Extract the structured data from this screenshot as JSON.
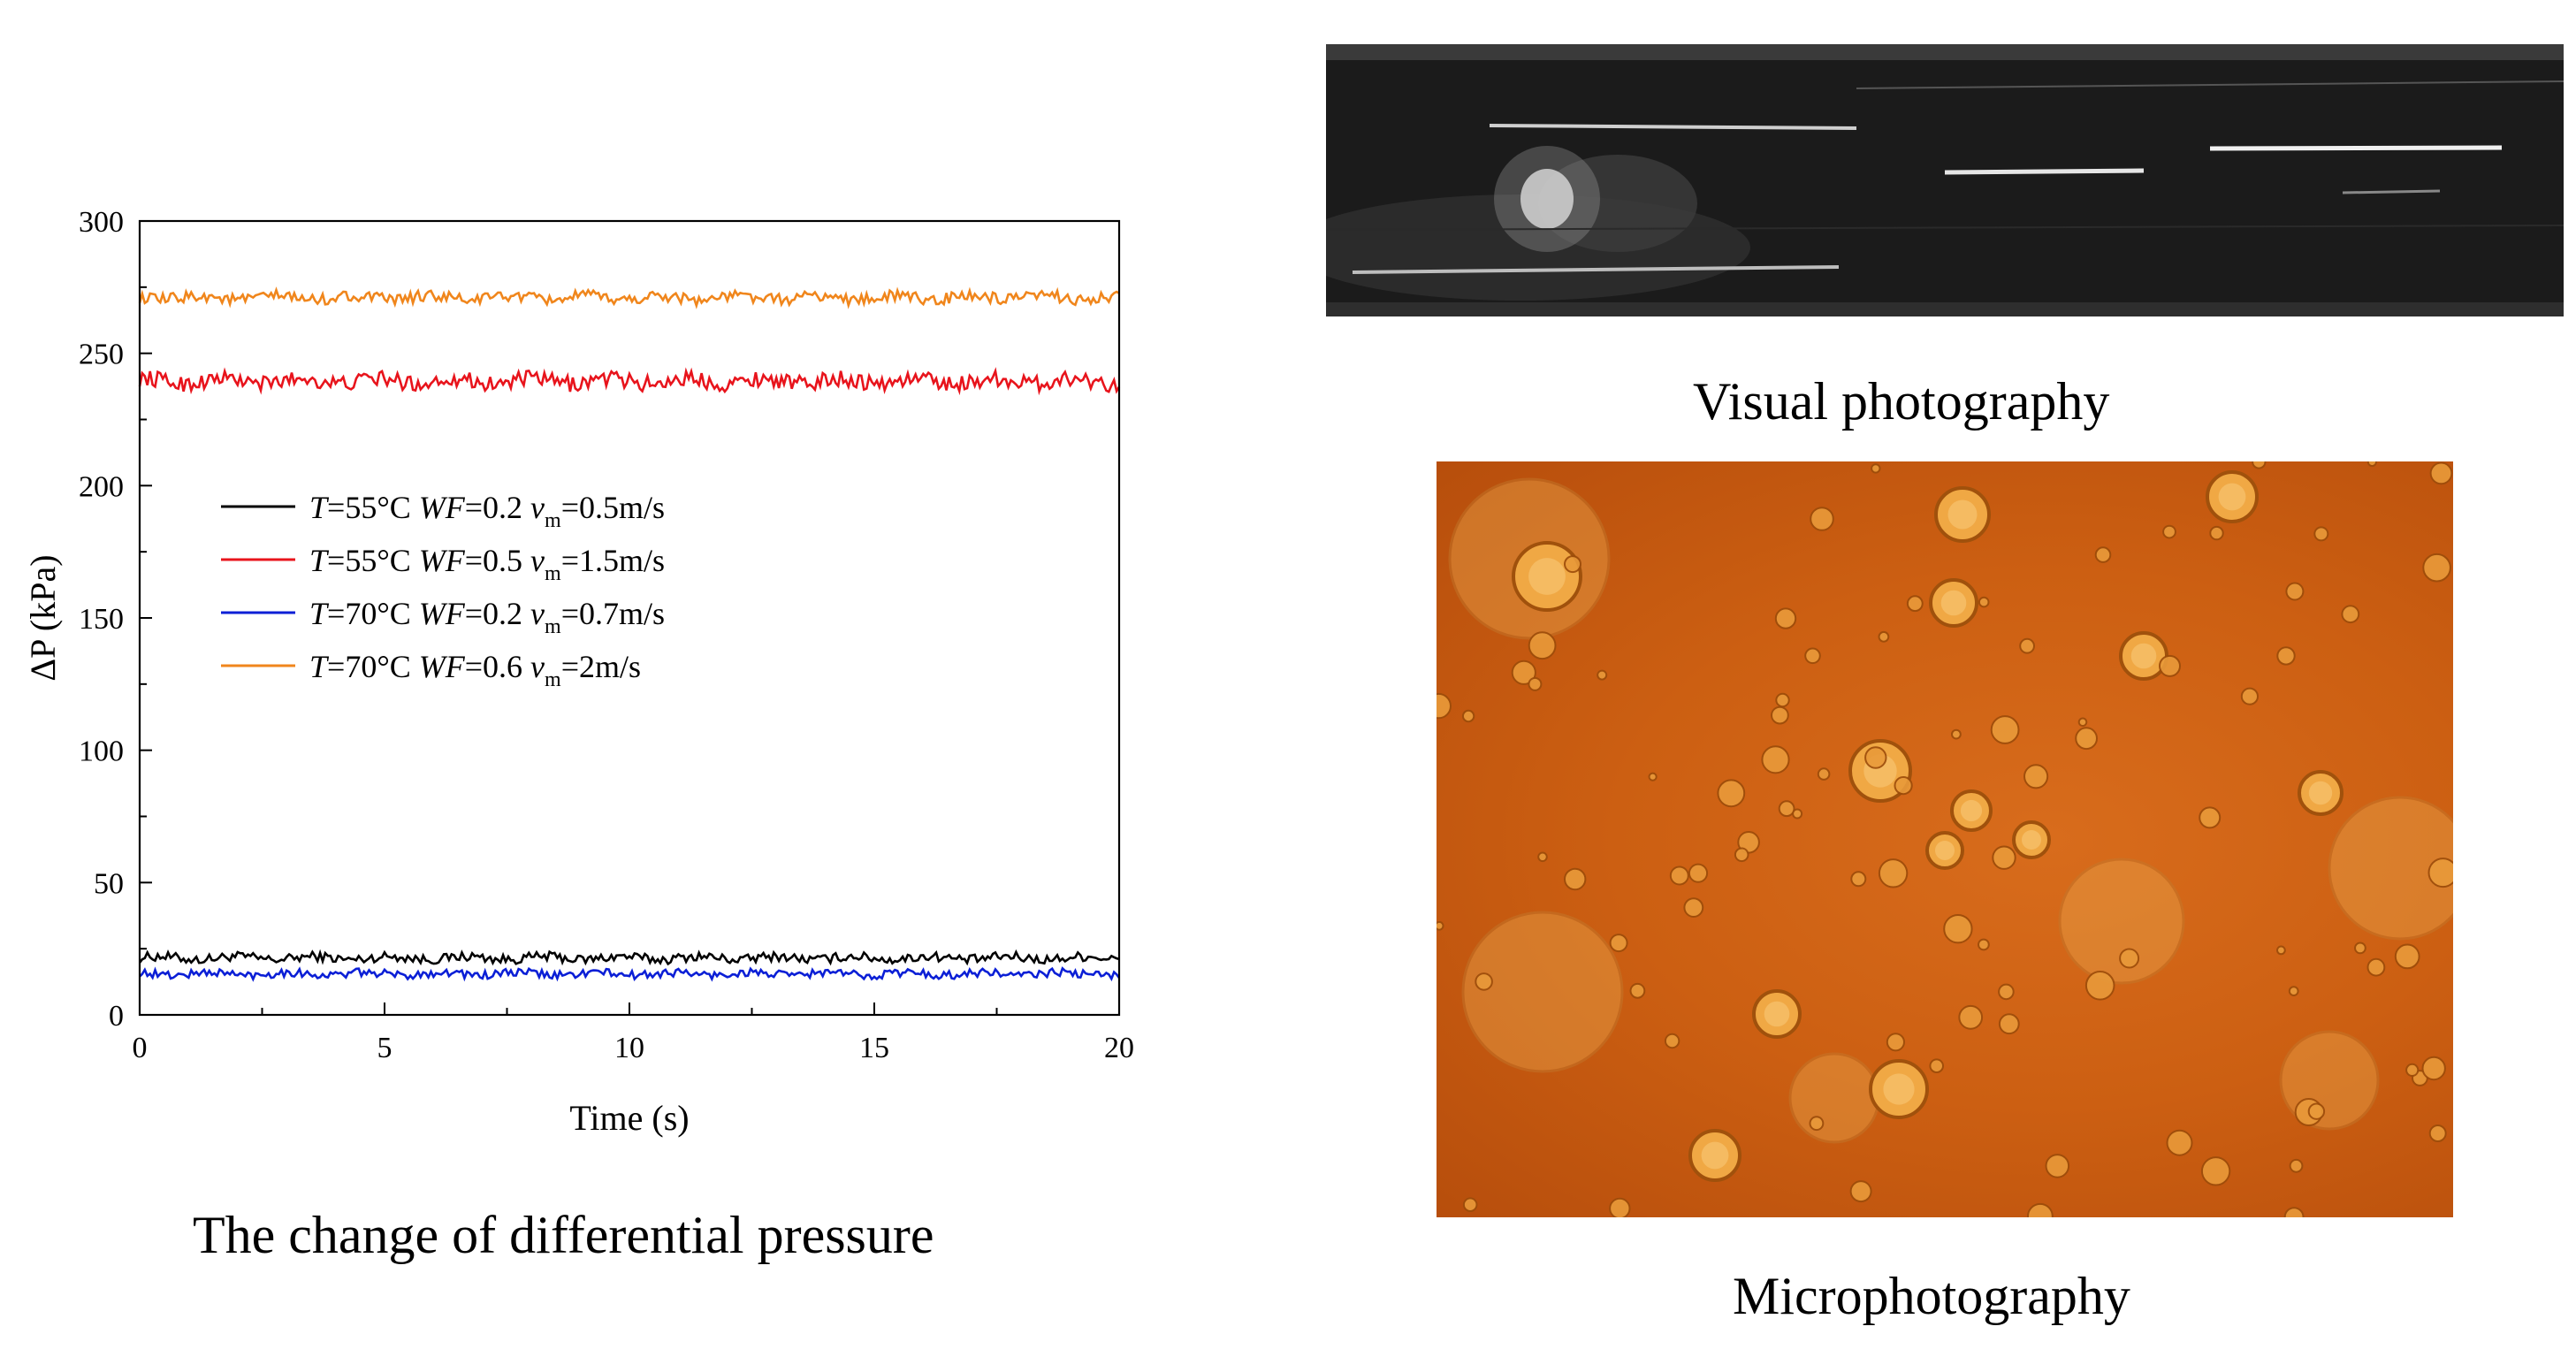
{
  "chart_data": {
    "type": "line",
    "title": "",
    "xlabel": "Time (s)",
    "ylabel": "ΔP (kPa)",
    "xlim": [
      0,
      20
    ],
    "ylim": [
      0,
      300
    ],
    "xticks": [
      0,
      5,
      10,
      15,
      20
    ],
    "yticks": [
      0,
      50,
      100,
      150,
      200,
      250,
      300
    ],
    "legend_position": "middle-left",
    "series": [
      {
        "name": "T=55°C WF=0.2 vm=0.5m/s",
        "legend": {
          "T": "T",
          "t_val": "=55°C ",
          "WF": "WF",
          "wf_val": "=0.2 ",
          "v": "v",
          "sub": "m",
          "v_val": "=0.5m/s"
        },
        "mean": 21.5,
        "amplitude": 1.8,
        "color": "#000000"
      },
      {
        "name": "T=55°C WF=0.5 vm=1.5m/s",
        "legend": {
          "T": "T",
          "t_val": "=55°C ",
          "WF": "WF",
          "wf_val": "=0.5 ",
          "v": "v",
          "sub": "m",
          "v_val": "=1.5m/s"
        },
        "mean": 239.5,
        "amplitude": 3.0,
        "color": "#e8141c"
      },
      {
        "name": "T=70°C WF=0.2 vm=0.7m/s",
        "legend": {
          "T": "T",
          "t_val": "=70°C ",
          "WF": "WF",
          "wf_val": "=0.2 ",
          "v": "v",
          "sub": "m",
          "v_val": "=0.7m/s"
        },
        "mean": 15.5,
        "amplitude": 1.6,
        "color": "#0b1fd6"
      },
      {
        "name": "T=70°C WF=0.6 vm=2m/s",
        "legend": {
          "T": "T",
          "t_val": "=70°C ",
          "WF": "WF",
          "wf_val": "=0.6 ",
          "v": "v",
          "sub": "m",
          "v_val": "=2m/s"
        },
        "mean": 271.0,
        "amplitude": 2.2,
        "color": "#f0861c"
      }
    ]
  },
  "captions": {
    "chart": "The change of differential pressure",
    "visual": "Visual photography",
    "micro": "Microphotography"
  },
  "photos": {
    "visual_icon": "tube-flow-photo",
    "micro_icon": "droplet-micrograph"
  }
}
